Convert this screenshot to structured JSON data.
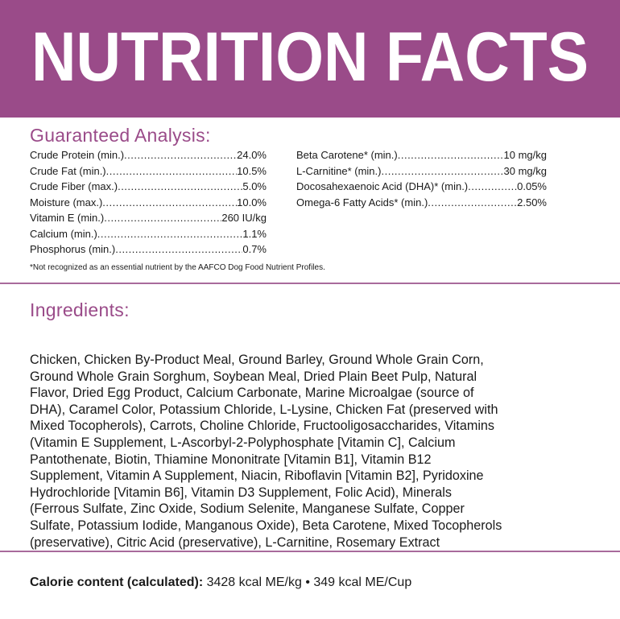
{
  "title": "NUTRITION FACTS",
  "colors": {
    "brand": "#9a4b89"
  },
  "guaranteed_analysis": {
    "heading": "Guaranteed Analysis:",
    "left": [
      {
        "label": "Crude Protein (min.)",
        "value": "24.0%"
      },
      {
        "label": "Crude Fat (min.)",
        "value": "10.5%"
      },
      {
        "label": "Crude Fiber (max.)",
        "value": "5.0%"
      },
      {
        "label": "Moisture (max.)",
        "value": "10.0%"
      },
      {
        "label": "Vitamin E (min.)",
        "value": "260 IU/kg"
      },
      {
        "label": "Calcium (min.)",
        "value": "1.1%"
      },
      {
        "label": "Phosphorus (min.)",
        "value": "0.7%"
      }
    ],
    "right": [
      {
        "label": "Beta Carotene* (min.)",
        "value": "10 mg/kg"
      },
      {
        "label": "L-Carnitine* (min.)",
        "value": "30 mg/kg"
      },
      {
        "label": "Docosahexaenoic Acid (DHA)* (min.)",
        "value": "0.05%"
      },
      {
        "label": "Omega-6 Fatty Acids* (min.)",
        "value": "2.50%"
      }
    ],
    "footnote": "*Not recognized as an essential nutrient by the AAFCO Dog Food Nutrient Profiles."
  },
  "ingredients": {
    "heading": "Ingredients:",
    "lines": [
      "Chicken, Chicken By-Product Meal, Ground Barley, Ground Whole Grain Corn,",
      "Ground Whole Grain Sorghum, Soybean Meal, Dried Plain Beet Pulp, Natural",
      "Flavor, Dried Egg Product, Calcium Carbonate, Marine Microalgae (source of",
      "DHA), Caramel Color, Potassium Chloride, L-Lysine, Chicken Fat (preserved with",
      "Mixed Tocopherols), Carrots, Choline Chloride, Fructooligosaccharides, Vitamins",
      "(Vitamin E Supplement, L-Ascorbyl-2-Polyphosphate [Vitamin C], Calcium",
      "Pantothenate, Biotin, Thiamine Mononitrate [Vitamin B1], Vitamin B12",
      "Supplement, Vitamin A Supplement, Niacin, Riboflavin [Vitamin B2], Pyridoxine",
      "Hydrochloride [Vitamin B6], Vitamin D3 Supplement, Folic Acid), Minerals",
      "(Ferrous Sulfate, Zinc Oxide, Sodium Selenite, Manganese Sulfate, Copper",
      "Sulfate, Potassium Iodide, Manganous Oxide), Beta Carotene, Mixed Tocopherols",
      "(preservative), Citric Acid (preservative), L-Carnitine, Rosemary Extract"
    ]
  },
  "calorie": {
    "label": "Calorie content (calculated):",
    "value": "3428 kcal ME/kg • 349 kcal ME/Cup"
  }
}
